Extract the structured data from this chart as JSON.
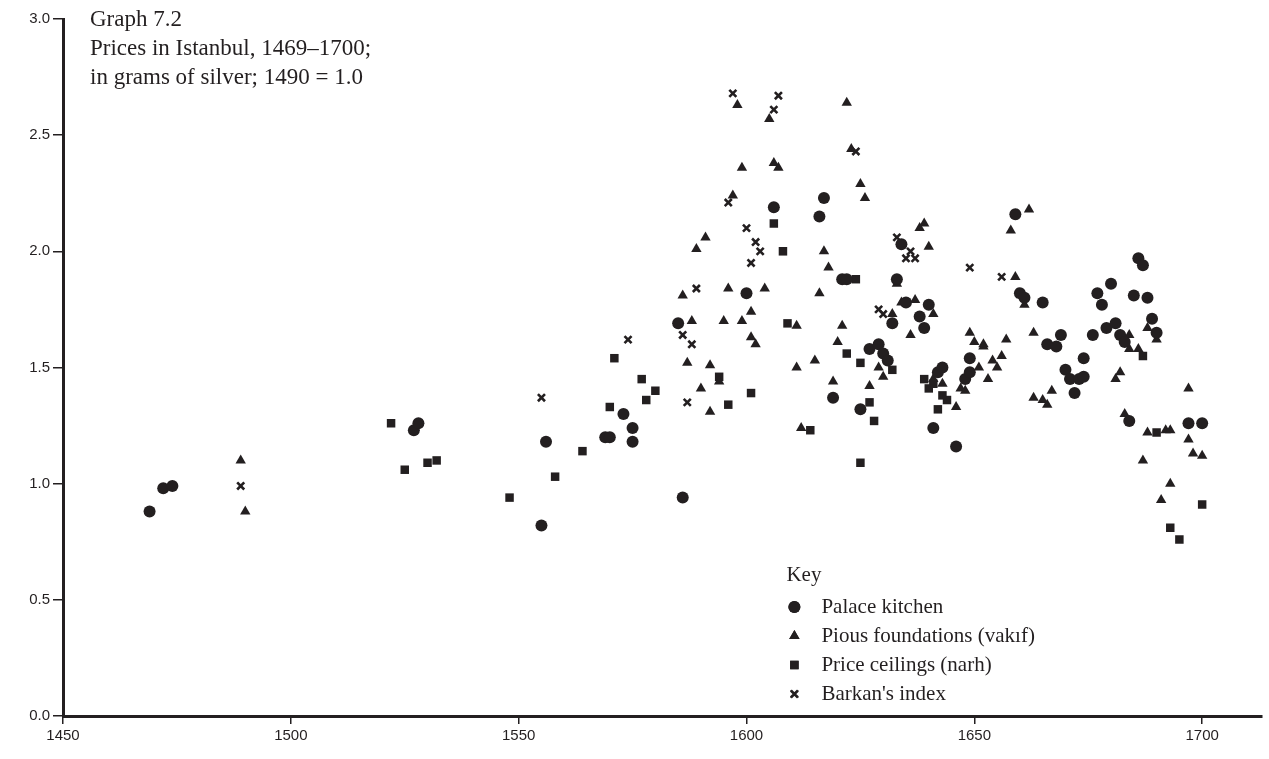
{
  "chart_data": {
    "type": "scatter",
    "title": "Graph 7.2",
    "subtitle": "Prices in Istanbul, 1469–1700; in grams of silver; 1490 = 1.0",
    "legend_title": "Key",
    "legend": "bottom right",
    "grid": false,
    "xlim": [
      1450,
      1713
    ],
    "xticks": [
      1450,
      1500,
      1550,
      1600,
      1650,
      1700
    ],
    "ylim": [
      0,
      3
    ],
    "yticks": [
      {
        "value": 0,
        "label": "0.0"
      },
      {
        "value": 0.5,
        "label": "0.5"
      },
      {
        "value": 1,
        "label": "1.0"
      },
      {
        "value": 1.5,
        "label": "1.5"
      },
      {
        "value": 2,
        "label": "2.0"
      },
      {
        "value": 2.5,
        "label": "2.5"
      },
      {
        "value": 3,
        "label": "3.0"
      }
    ],
    "series": [
      {
        "name": "Palace kitchen",
        "color": "#231f20",
        "marker": "circle",
        "x": [
          1469,
          1472,
          1474,
          1527,
          1528,
          1555,
          1556,
          1569,
          1570,
          1573,
          1575,
          1575,
          1585,
          1586,
          1600,
          1606,
          1616,
          1617,
          1619,
          1621,
          1622,
          1625,
          1627,
          1629,
          1630,
          1631,
          1632,
          1633,
          1634,
          1635,
          1638,
          1639,
          1640,
          1641,
          1642,
          1643,
          1646,
          1648,
          1649,
          1649,
          1659,
          1660,
          1661,
          1665,
          1666,
          1668,
          1669,
          1670,
          1671,
          1672,
          1673,
          1674,
          1674,
          1676,
          1677,
          1678,
          1679,
          1680,
          1681,
          1682,
          1683,
          1684,
          1685,
          1686,
          1687,
          1688,
          1689,
          1690,
          1697,
          1700
        ],
        "values": [
          0.88,
          0.98,
          0.99,
          1.23,
          1.26,
          0.82,
          1.18,
          1.2,
          1.2,
          1.3,
          1.24,
          1.18,
          1.69,
          0.94,
          1.82,
          2.19,
          2.15,
          2.23,
          1.37,
          1.88,
          1.88,
          1.32,
          1.58,
          1.6,
          1.56,
          1.53,
          1.69,
          1.88,
          2.03,
          1.78,
          1.72,
          1.67,
          1.77,
          1.24,
          1.48,
          1.5,
          1.16,
          1.45,
          1.48,
          1.54,
          2.16,
          1.82,
          1.8,
          1.78,
          1.6,
          1.59,
          1.64,
          1.49,
          1.45,
          1.39,
          1.45,
          1.46,
          1.54,
          1.64,
          1.82,
          1.77,
          1.67,
          1.86,
          1.69,
          1.64,
          1.61,
          1.27,
          1.81,
          1.97,
          1.94,
          1.8,
          1.71,
          1.65,
          1.26,
          1.26
        ]
      },
      {
        "name": "Pious foundations (vakıf)",
        "color": "#231f20",
        "marker": "triangle",
        "x": [
          1489,
          1490,
          1586,
          1587,
          1588,
          1589,
          1590,
          1591,
          1592,
          1592,
          1594,
          1595,
          1596,
          1597,
          1598,
          1599,
          1599,
          1601,
          1601,
          1602,
          1604,
          1605,
          1606,
          1607,
          1611,
          1611,
          1612,
          1615,
          1616,
          1617,
          1618,
          1619,
          1620,
          1621,
          1622,
          1623,
          1625,
          1626,
          1627,
          1629,
          1630,
          1632,
          1633,
          1634,
          1636,
          1637,
          1638,
          1639,
          1640,
          1641,
          1641,
          1643,
          1646,
          1647,
          1648,
          1649,
          1650,
          1651,
          1652,
          1652,
          1653,
          1654,
          1655,
          1656,
          1657,
          1658,
          1659,
          1661,
          1662,
          1663,
          1663,
          1665,
          1666,
          1667,
          1681,
          1682,
          1683,
          1684,
          1684,
          1686,
          1687,
          1688,
          1688,
          1690,
          1691,
          1692,
          1693,
          1693,
          1697,
          1697,
          1698,
          1700
        ],
        "values": [
          1.1,
          0.88,
          1.81,
          1.52,
          1.7,
          2.01,
          1.41,
          2.06,
          1.51,
          1.31,
          1.44,
          1.7,
          1.84,
          2.24,
          2.63,
          2.36,
          1.7,
          1.74,
          1.63,
          1.6,
          1.84,
          2.57,
          2.38,
          2.36,
          1.68,
          1.5,
          1.24,
          1.53,
          1.82,
          2.0,
          1.93,
          1.44,
          1.61,
          1.68,
          2.64,
          2.44,
          2.29,
          2.23,
          1.42,
          1.5,
          1.46,
          1.73,
          1.86,
          1.78,
          1.64,
          1.79,
          2.1,
          2.12,
          2.02,
          1.73,
          1.45,
          1.43,
          1.33,
          1.41,
          1.4,
          1.65,
          1.61,
          1.5,
          1.6,
          1.59,
          1.45,
          1.53,
          1.5,
          1.55,
          1.62,
          2.09,
          1.89,
          1.77,
          2.18,
          1.65,
          1.37,
          1.36,
          1.34,
          1.4,
          1.45,
          1.48,
          1.3,
          1.64,
          1.58,
          1.58,
          1.1,
          1.22,
          1.67,
          1.62,
          0.93,
          1.23,
          1.23,
          1.0,
          1.41,
          1.19,
          1.13,
          1.12
        ]
      },
      {
        "name": "Price ceilings (narh)",
        "color": "#231f20",
        "marker": "square",
        "x": [
          1522,
          1525,
          1530,
          1532,
          1548,
          1558,
          1564,
          1570,
          1571,
          1577,
          1578,
          1580,
          1594,
          1596,
          1601,
          1606,
          1608,
          1609,
          1614,
          1622,
          1624,
          1625,
          1625,
          1627,
          1628,
          1632,
          1639,
          1641,
          1640,
          1642,
          1643,
          1644,
          1687,
          1690,
          1693,
          1695,
          1700
        ],
        "values": [
          1.26,
          1.06,
          1.09,
          1.1,
          0.94,
          1.03,
          1.14,
          1.33,
          1.54,
          1.45,
          1.36,
          1.4,
          1.46,
          1.34,
          1.39,
          2.12,
          2.0,
          1.69,
          1.23,
          1.56,
          1.88,
          1.52,
          1.09,
          1.35,
          1.27,
          1.49,
          1.45,
          1.43,
          1.41,
          1.32,
          1.38,
          1.36,
          1.55,
          1.22,
          0.81,
          0.76,
          0.91
        ]
      },
      {
        "name": "Barkan's index",
        "color": "#231f20",
        "marker": "cross",
        "x": [
          1489,
          1555,
          1574,
          1586,
          1587,
          1588,
          1589,
          1596,
          1597,
          1600,
          1601,
          1602,
          1603,
          1606,
          1607,
          1624,
          1629,
          1630,
          1633,
          1635,
          1636,
          1637,
          1649,
          1656
        ],
        "values": [
          0.99,
          1.37,
          1.62,
          1.64,
          1.35,
          1.6,
          1.84,
          2.21,
          2.68,
          2.1,
          1.95,
          2.04,
          2.0,
          2.61,
          2.67,
          2.43,
          1.75,
          1.73,
          2.06,
          1.97,
          2.0,
          1.97,
          1.93,
          1.89
        ]
      }
    ]
  }
}
